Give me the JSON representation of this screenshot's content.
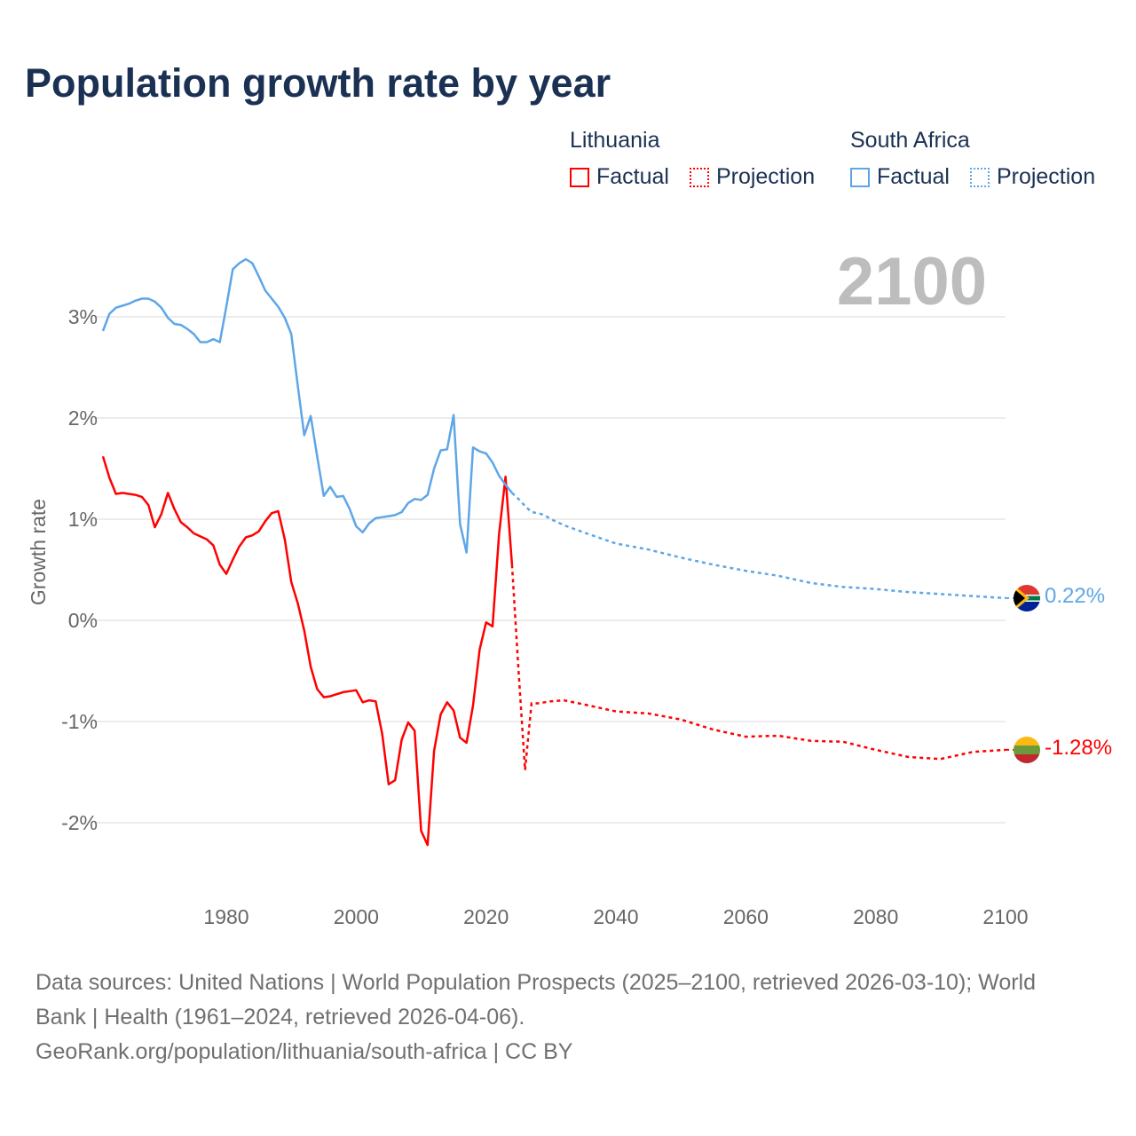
{
  "title": "Population growth rate by year",
  "legend": {
    "groups": [
      {
        "country": "Lithuania",
        "factual": "Factual",
        "projection": "Projection",
        "color": "#ff0000"
      },
      {
        "country": "South Africa",
        "factual": "Factual",
        "projection": "Projection",
        "color": "#5ea6e8"
      }
    ]
  },
  "footnote": {
    "line1": "Data sources: United Nations | World Population Prospects (2025–2100, retrieved 2026-03-10); World",
    "line2": "Bank | Health (1961–2024, retrieved 2026-04-06).",
    "line3": "GeoRank.org/population/lithuania/south-africa | CC BY"
  },
  "chart_data": {
    "type": "line",
    "title": "Population growth rate by year",
    "xlabel": "",
    "ylabel": "Growth rate",
    "xlim": [
      1961,
      2100
    ],
    "ylim": [
      -2.6,
      3.7
    ],
    "x_ticks": [
      1980,
      2000,
      2020,
      2040,
      2060,
      2080,
      2100
    ],
    "x_tick_labels": [
      "1980",
      "2000",
      "2020",
      "2040",
      "2060",
      "2080",
      "2100"
    ],
    "y_ticks": [
      3,
      2,
      1,
      0,
      -1,
      -2
    ],
    "y_tick_labels": [
      "3%",
      "2%",
      "1%",
      "0%",
      "-1%",
      "-2%"
    ],
    "grid": true,
    "year_label": "2100",
    "series": [
      {
        "name": "Lithuania",
        "color": "#ff0000",
        "end_label": "-1.28%",
        "flag": "lithuania-flag",
        "factual": [
          [
            1961,
            1.62
          ],
          [
            1962,
            1.41
          ],
          [
            1963,
            1.25
          ],
          [
            1964,
            1.26
          ],
          [
            1965,
            1.25
          ],
          [
            1966,
            1.24
          ],
          [
            1967,
            1.22
          ],
          [
            1968,
            1.14
          ],
          [
            1969,
            0.92
          ],
          [
            1970,
            1.05
          ],
          [
            1971,
            1.26
          ],
          [
            1972,
            1.1
          ],
          [
            1973,
            0.97
          ],
          [
            1974,
            0.92
          ],
          [
            1975,
            0.86
          ],
          [
            1976,
            0.83
          ],
          [
            1977,
            0.8
          ],
          [
            1978,
            0.74
          ],
          [
            1979,
            0.55
          ],
          [
            1980,
            0.46
          ],
          [
            1981,
            0.6
          ],
          [
            1982,
            0.73
          ],
          [
            1983,
            0.82
          ],
          [
            1984,
            0.84
          ],
          [
            1985,
            0.88
          ],
          [
            1986,
            0.98
          ],
          [
            1987,
            1.06
          ],
          [
            1988,
            1.08
          ],
          [
            1989,
            0.8
          ],
          [
            1990,
            0.38
          ],
          [
            1991,
            0.17
          ],
          [
            1992,
            -0.1
          ],
          [
            1993,
            -0.46
          ],
          [
            1994,
            -0.68
          ],
          [
            1995,
            -0.76
          ],
          [
            1996,
            -0.75
          ],
          [
            1997,
            -0.73
          ],
          [
            1998,
            -0.71
          ],
          [
            1999,
            -0.7
          ],
          [
            2000,
            -0.69
          ],
          [
            2001,
            -0.81
          ],
          [
            2002,
            -0.79
          ],
          [
            2003,
            -0.8
          ],
          [
            2004,
            -1.12
          ],
          [
            2005,
            -1.62
          ],
          [
            2006,
            -1.58
          ],
          [
            2007,
            -1.18
          ],
          [
            2008,
            -1.01
          ],
          [
            2009,
            -1.09
          ],
          [
            2010,
            -2.08
          ],
          [
            2011,
            -2.22
          ],
          [
            2012,
            -1.29
          ],
          [
            2013,
            -0.93
          ],
          [
            2014,
            -0.81
          ],
          [
            2015,
            -0.89
          ],
          [
            2016,
            -1.16
          ],
          [
            2017,
            -1.21
          ],
          [
            2018,
            -0.84
          ],
          [
            2019,
            -0.29
          ],
          [
            2020,
            -0.02
          ],
          [
            2021,
            -0.06
          ],
          [
            2022,
            0.85
          ],
          [
            2023,
            1.42
          ],
          [
            2024,
            0.55
          ]
        ],
        "projection": [
          [
            2024,
            0.55
          ],
          [
            2025,
            -0.5
          ],
          [
            2026,
            -1.48
          ],
          [
            2027,
            -0.82
          ],
          [
            2028,
            -0.82
          ],
          [
            2030,
            -0.8
          ],
          [
            2032,
            -0.79
          ],
          [
            2035,
            -0.83
          ],
          [
            2040,
            -0.9
          ],
          [
            2045,
            -0.92
          ],
          [
            2050,
            -0.98
          ],
          [
            2055,
            -1.08
          ],
          [
            2060,
            -1.15
          ],
          [
            2065,
            -1.14
          ],
          [
            2070,
            -1.19
          ],
          [
            2075,
            -1.2
          ],
          [
            2080,
            -1.28
          ],
          [
            2085,
            -1.35
          ],
          [
            2090,
            -1.37
          ],
          [
            2095,
            -1.3
          ],
          [
            2100,
            -1.28
          ]
        ]
      },
      {
        "name": "South Africa",
        "color": "#5ea6e8",
        "end_label": "0.22%",
        "flag": "south-africa-flag",
        "factual": [
          [
            1961,
            2.86
          ],
          [
            1962,
            3.03
          ],
          [
            1963,
            3.09
          ],
          [
            1964,
            3.11
          ],
          [
            1965,
            3.13
          ],
          [
            1966,
            3.16
          ],
          [
            1967,
            3.18
          ],
          [
            1968,
            3.18
          ],
          [
            1969,
            3.15
          ],
          [
            1970,
            3.09
          ],
          [
            1971,
            2.99
          ],
          [
            1972,
            2.93
          ],
          [
            1973,
            2.92
          ],
          [
            1974,
            2.88
          ],
          [
            1975,
            2.83
          ],
          [
            1976,
            2.75
          ],
          [
            1977,
            2.75
          ],
          [
            1978,
            2.78
          ],
          [
            1979,
            2.75
          ],
          [
            1980,
            3.1
          ],
          [
            1981,
            3.47
          ],
          [
            1982,
            3.53
          ],
          [
            1983,
            3.57
          ],
          [
            1984,
            3.53
          ],
          [
            1985,
            3.4
          ],
          [
            1986,
            3.26
          ],
          [
            1987,
            3.18
          ],
          [
            1988,
            3.1
          ],
          [
            1989,
            2.99
          ],
          [
            1990,
            2.83
          ],
          [
            1991,
            2.32
          ],
          [
            1992,
            1.83
          ],
          [
            1993,
            2.02
          ],
          [
            1994,
            1.62
          ],
          [
            1995,
            1.23
          ],
          [
            1996,
            1.32
          ],
          [
            1997,
            1.22
          ],
          [
            1998,
            1.23
          ],
          [
            1999,
            1.1
          ],
          [
            2000,
            0.93
          ],
          [
            2001,
            0.87
          ],
          [
            2002,
            0.96
          ],
          [
            2003,
            1.01
          ],
          [
            2004,
            1.02
          ],
          [
            2005,
            1.03
          ],
          [
            2006,
            1.04
          ],
          [
            2007,
            1.07
          ],
          [
            2008,
            1.16
          ],
          [
            2009,
            1.2
          ],
          [
            2010,
            1.19
          ],
          [
            2011,
            1.24
          ],
          [
            2012,
            1.5
          ],
          [
            2013,
            1.68
          ],
          [
            2014,
            1.69
          ],
          [
            2015,
            2.03
          ],
          [
            2016,
            0.95
          ],
          [
            2017,
            0.67
          ],
          [
            2018,
            1.71
          ],
          [
            2019,
            1.67
          ],
          [
            2020,
            1.65
          ],
          [
            2021,
            1.56
          ],
          [
            2022,
            1.43
          ],
          [
            2023,
            1.34
          ],
          [
            2024,
            1.26
          ]
        ],
        "projection": [
          [
            2024,
            1.26
          ],
          [
            2025,
            1.2
          ],
          [
            2026,
            1.13
          ],
          [
            2027,
            1.07
          ],
          [
            2028,
            1.06
          ],
          [
            2029,
            1.04
          ],
          [
            2030,
            1.0
          ],
          [
            2032,
            0.94
          ],
          [
            2035,
            0.87
          ],
          [
            2040,
            0.76
          ],
          [
            2045,
            0.7
          ],
          [
            2050,
            0.62
          ],
          [
            2055,
            0.55
          ],
          [
            2060,
            0.49
          ],
          [
            2065,
            0.44
          ],
          [
            2070,
            0.37
          ],
          [
            2075,
            0.33
          ],
          [
            2080,
            0.31
          ],
          [
            2085,
            0.28
          ],
          [
            2090,
            0.26
          ],
          [
            2095,
            0.24
          ],
          [
            2100,
            0.22
          ]
        ]
      }
    ]
  }
}
